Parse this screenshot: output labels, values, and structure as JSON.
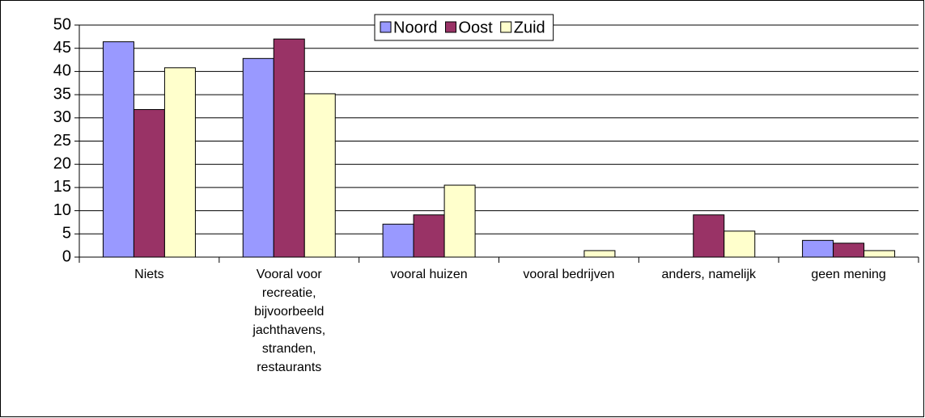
{
  "chart_data": {
    "type": "bar",
    "categories": [
      "Niets",
      "Vooral voor recreatie, bijvoorbeeld jachthavens, stranden, restaurants",
      "vooral huizen",
      "vooral bedrijven",
      "anders, namelijk",
      "geen mening"
    ],
    "series": [
      {
        "name": "Noord",
        "color": "#9999ff",
        "values": [
          46.4,
          42.8,
          7.1,
          0,
          0,
          3.6
        ]
      },
      {
        "name": "Oost",
        "color": "#993366",
        "values": [
          31.8,
          47,
          9.1,
          0,
          9.1,
          3.0
        ]
      },
      {
        "name": "Zuid",
        "color": "#ffffcc",
        "values": [
          40.8,
          35.2,
          15.5,
          1.4,
          5.6,
          1.4
        ]
      }
    ],
    "ylim": [
      0,
      50
    ],
    "yticks": [
      0,
      5,
      10,
      15,
      20,
      25,
      30,
      35,
      40,
      45,
      50
    ],
    "grid": true,
    "legend": "top"
  }
}
